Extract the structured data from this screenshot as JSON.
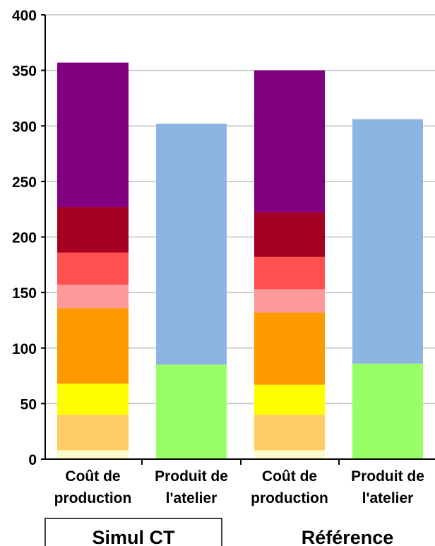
{
  "chart_data": {
    "type": "bar",
    "stacked": true,
    "ylim": [
      0,
      400
    ],
    "y_ticks": [
      0,
      50,
      100,
      150,
      200,
      250,
      300,
      350,
      400
    ],
    "grid": true,
    "bars": [
      {
        "label": [
          "Coût de",
          "production"
        ],
        "segments": [
          {
            "value": 8,
            "color": "#FFFACD"
          },
          {
            "value": 32,
            "color": "#FFCC66"
          },
          {
            "value": 28,
            "color": "#FFFF00"
          },
          {
            "value": 68,
            "color": "#FF9900"
          },
          {
            "value": 21,
            "color": "#FF9999"
          },
          {
            "value": 29,
            "color": "#FF5050"
          },
          {
            "value": 41,
            "color": "#A50021"
          },
          {
            "value": 130,
            "color": "#800080"
          }
        ]
      },
      {
        "label": [
          "Produit de",
          "l'atelier"
        ],
        "segments": [
          {
            "value": 85,
            "color": "#99FF66"
          },
          {
            "value": 217,
            "color": "#8EB4E3"
          }
        ]
      },
      {
        "label": [
          "Coût de",
          "production"
        ],
        "segments": [
          {
            "value": 8,
            "color": "#FFFACD"
          },
          {
            "value": 32,
            "color": "#FFCC66"
          },
          {
            "value": 27,
            "color": "#FFFF00"
          },
          {
            "value": 65,
            "color": "#FF9900"
          },
          {
            "value": 21,
            "color": "#FF9999"
          },
          {
            "value": 29,
            "color": "#FF5050"
          },
          {
            "value": 40,
            "color": "#A50021"
          },
          {
            "value": 128,
            "color": "#800080"
          }
        ]
      },
      {
        "label": [
          "Produit de",
          "l'atelier"
        ],
        "segments": [
          {
            "value": 86,
            "color": "#99FF66"
          },
          {
            "value": 220,
            "color": "#8EB4E3"
          }
        ]
      }
    ],
    "groups": [
      {
        "label": "Simul CT",
        "boxed": true
      },
      {
        "label": "Référence",
        "boxed": false
      }
    ]
  }
}
